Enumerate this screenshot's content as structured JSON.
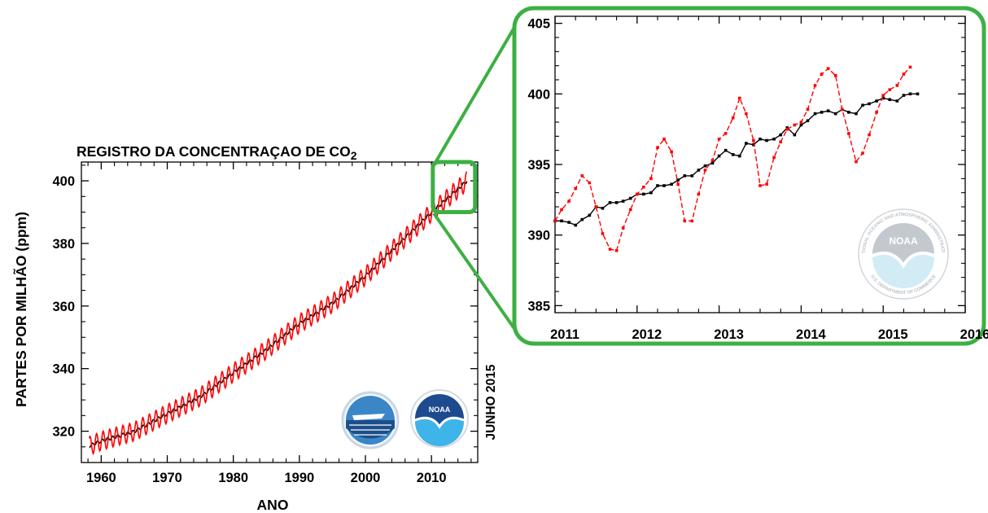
{
  "colors": {
    "monthly": "#ff0000",
    "trend": "#000000",
    "zoom_frame": "#3cb043",
    "axis": "#000000",
    "noaa_blue": "#1e4b8f",
    "noaa_light": "#3fb4e8"
  },
  "icons": [
    "scripps-logo-icon",
    "noaa-logo-icon",
    "noaa-watermark-icon"
  ],
  "logos": {
    "noaa_text": "NOAA",
    "noaa_ring_top": "NATIONAL OCEANIC AND ATMOSPHERIC ADMINISTRATION",
    "noaa_ring_bottom": "U.S. DEPARTMENT OF COMMERCE"
  },
  "chart_data": [
    {
      "type": "line",
      "title": "REGISTRO DA CONCENTRAÇAO DE CO",
      "title_subscript": "2",
      "xlabel": "ANO",
      "ylabel": "PARTES POR MILHÃO (ppm)",
      "side_label": "JUNHO 2015",
      "xlim": [
        1957,
        2017
      ],
      "ylim": [
        310,
        406
      ],
      "xticks": [
        1960,
        1970,
        1980,
        1990,
        2000,
        2010
      ],
      "yticks": [
        320,
        340,
        360,
        380,
        400
      ],
      "grid": false,
      "series": [
        {
          "role": "monthly",
          "x_start": 1958.2,
          "x_end": 2015.4,
          "seasonal_amplitude_ppm": 3,
          "sampling": "monthly",
          "trend_points": [
            [
              1958.2,
              315.3
            ],
            [
              1960,
              316.9
            ],
            [
              1965,
              319.9
            ],
            [
              1970,
              325.6
            ],
            [
              1975,
              331.0
            ],
            [
              1980,
              338.7
            ],
            [
              1985,
              346.0
            ],
            [
              1990,
              354.4
            ],
            [
              1995,
              360.9
            ],
            [
              2000,
              369.6
            ],
            [
              2005,
              379.8
            ],
            [
              2010,
              389.9
            ],
            [
              2015.4,
              400.0
            ]
          ]
        },
        {
          "role": "trend",
          "points": [
            [
              1958.2,
              315.3
            ],
            [
              1960,
              316.9
            ],
            [
              1965,
              319.9
            ],
            [
              1970,
              325.6
            ],
            [
              1975,
              331.0
            ],
            [
              1980,
              338.7
            ],
            [
              1985,
              346.0
            ],
            [
              1990,
              354.4
            ],
            [
              1995,
              360.9
            ],
            [
              2000,
              369.6
            ],
            [
              2005,
              379.8
            ],
            [
              2010,
              389.9
            ],
            [
              2015.4,
              400.0
            ]
          ]
        }
      ],
      "zoom_box": {
        "x": [
          2010.2,
          2016.6
        ],
        "y": [
          390,
          406
        ]
      }
    },
    {
      "type": "line",
      "title": "",
      "xlabel": "",
      "ylabel": "",
      "xlim": [
        2011,
        2016
      ],
      "ylim": [
        384.5,
        405.5
      ],
      "xticks": [
        2011,
        2012,
        2013,
        2014,
        2015,
        2016
      ],
      "yticks": [
        385,
        390,
        395,
        400,
        405
      ],
      "grid": false,
      "series": [
        {
          "role": "monthly",
          "x": [
            2011.0,
            2011.08,
            2011.17,
            2011.25,
            2011.33,
            2011.42,
            2011.5,
            2011.58,
            2011.67,
            2011.75,
            2011.83,
            2011.92,
            2012.0,
            2012.08,
            2012.17,
            2012.25,
            2012.33,
            2012.42,
            2012.5,
            2012.58,
            2012.67,
            2012.75,
            2012.83,
            2012.92,
            2013.0,
            2013.08,
            2013.17,
            2013.25,
            2013.33,
            2013.42,
            2013.5,
            2013.58,
            2013.67,
            2013.75,
            2013.83,
            2013.92,
            2014.0,
            2014.08,
            2014.17,
            2014.25,
            2014.33,
            2014.42,
            2014.5,
            2014.58,
            2014.67,
            2014.75,
            2014.83,
            2014.92,
            2015.0,
            2015.08,
            2015.17,
            2015.25,
            2015.33
          ],
          "y": [
            391.0,
            391.8,
            392.4,
            393.3,
            394.2,
            393.7,
            392.0,
            390.1,
            389.0,
            388.9,
            390.5,
            391.8,
            392.9,
            393.4,
            394.0,
            396.2,
            396.8,
            395.9,
            393.6,
            391.0,
            391.0,
            392.9,
            394.6,
            395.3,
            396.8,
            397.2,
            398.3,
            399.7,
            398.6,
            396.7,
            393.5,
            393.6,
            395.5,
            396.6,
            397.5,
            397.8,
            398.0,
            398.9,
            400.6,
            401.4,
            401.8,
            401.3,
            398.9,
            397.2,
            395.2,
            395.8,
            397.1,
            398.7,
            399.9,
            400.3,
            400.6,
            401.4,
            401.9
          ]
        },
        {
          "role": "trend",
          "x": [
            2011.0,
            2011.08,
            2011.17,
            2011.25,
            2011.33,
            2011.42,
            2011.5,
            2011.58,
            2011.67,
            2011.75,
            2011.83,
            2011.92,
            2012.0,
            2012.08,
            2012.17,
            2012.25,
            2012.33,
            2012.42,
            2012.5,
            2012.58,
            2012.67,
            2012.75,
            2012.83,
            2012.92,
            2013.0,
            2013.08,
            2013.17,
            2013.25,
            2013.33,
            2013.42,
            2013.5,
            2013.58,
            2013.67,
            2013.75,
            2013.83,
            2013.92,
            2014.0,
            2014.08,
            2014.17,
            2014.25,
            2014.33,
            2014.42,
            2014.5,
            2014.58,
            2014.67,
            2014.75,
            2014.83,
            2014.92,
            2015.0,
            2015.08,
            2015.17,
            2015.25,
            2015.33,
            2015.42
          ],
          "y": [
            391.0,
            391.0,
            390.9,
            390.7,
            391.1,
            391.4,
            392.0,
            391.9,
            392.3,
            392.3,
            392.4,
            392.6,
            392.9,
            392.9,
            393.0,
            393.5,
            393.5,
            393.6,
            393.9,
            394.2,
            394.2,
            394.6,
            394.9,
            395.1,
            395.6,
            396.0,
            395.7,
            395.6,
            396.5,
            396.4,
            396.8,
            396.7,
            396.8,
            397.1,
            397.6,
            397.1,
            397.8,
            398.1,
            398.6,
            398.7,
            398.8,
            398.6,
            398.9,
            398.7,
            398.6,
            399.2,
            399.3,
            399.5,
            399.7,
            399.6,
            399.5,
            399.9,
            400.0,
            400.0
          ]
        }
      ]
    }
  ]
}
